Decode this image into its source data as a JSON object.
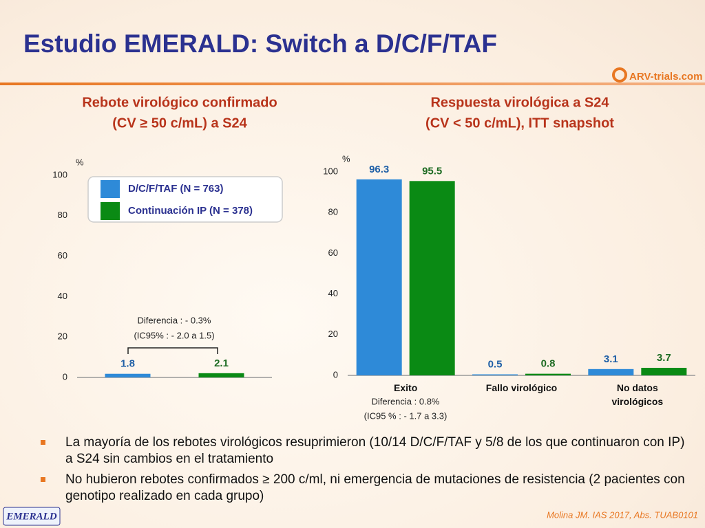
{
  "title": "Estudio EMERALD: Switch a D/C/F/TAF",
  "logo": "ARV-trials.com",
  "chart_data": [
    {
      "type": "bar",
      "title": "Rebote virológico confirmado",
      "subtitle": "(CV ≥ 50 c/mL) a S24",
      "y_label": "%",
      "categories": [
        null
      ],
      "series": [
        {
          "name": "D/C/F/TAF (N = 763)",
          "color": "#2e8ad8",
          "values": [
            1.8
          ]
        },
        {
          "name": "Continuación IP (N = 378)",
          "color": "#0a8a14",
          "values": [
            2.1
          ]
        }
      ],
      "ylim": [
        0,
        100
      ],
      "yticks": [
        0,
        20,
        40,
        60,
        80,
        100
      ],
      "grid": false,
      "legend": "top-right",
      "annotations": [
        "Diferencia : - 0.3%",
        "(IC95% : - 2.0 a 1.5)"
      ]
    },
    {
      "type": "bar",
      "title": "Respuesta virológica a S24",
      "subtitle": "(CV < 50 c/mL), ITT snapshot",
      "y_label": "%",
      "categories": [
        "Exito",
        "Fallo virológico",
        "No datos virológicos"
      ],
      "series": [
        {
          "color": "#2e8ad8",
          "values": [
            96.3,
            0.5,
            3.1
          ]
        },
        {
          "color": "#0a8a14",
          "values": [
            95.5,
            0.8,
            3.7
          ]
        }
      ],
      "ylim": [
        0,
        100
      ],
      "yticks": [
        0,
        20,
        40,
        60,
        80,
        100
      ],
      "grid": false,
      "annotations": [
        "Diferencia : 0.8%",
        "(IC95 %  : - 1.7 a 3.3)"
      ]
    }
  ],
  "bullets": [
    "La mayoría de los rebotes virológicos resuprimieron (10/14 D/C/F/TAF y 5/8 de los que continuaron con IP) a S24 sin cambios en el tratamiento",
    "No hubieron rebotes confirmados ≥ 200 c/ml, ni emergencia de mutaciones de resistencia (2 pacientes con genotipo realizado en cada grupo)"
  ],
  "footer": {
    "tag": "EMERALD",
    "reference": "Molina JM. IAS 2017, Abs. TUAB0101"
  }
}
